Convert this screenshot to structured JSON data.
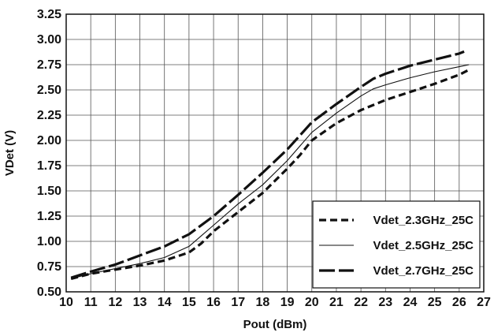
{
  "chart_data": {
    "type": "line",
    "xlabel": "Pout (dBm)",
    "ylabel": "VDet (V)",
    "xlim": [
      10,
      27
    ],
    "ylim": [
      0.5,
      3.25
    ],
    "xticks": [
      10,
      11,
      12,
      13,
      14,
      15,
      16,
      17,
      18,
      19,
      20,
      21,
      22,
      23,
      24,
      25,
      26,
      27
    ],
    "yticks": [
      "0.50",
      "0.75",
      "1.00",
      "1.25",
      "1.50",
      "1.75",
      "2.00",
      "2.25",
      "2.50",
      "2.75",
      "3.00",
      "3.25"
    ],
    "grid": true,
    "legend_position": "bottom-right",
    "series": [
      {
        "name": "Vdet_2.3GHz_25C",
        "style": "short-dash",
        "color": "#111111",
        "points": [
          [
            10.2,
            0.63
          ],
          [
            11,
            0.68
          ],
          [
            12,
            0.72
          ],
          [
            13,
            0.76
          ],
          [
            14,
            0.81
          ],
          [
            15,
            0.89
          ],
          [
            15.5,
            0.98
          ],
          [
            16,
            1.1
          ],
          [
            17,
            1.29
          ],
          [
            18,
            1.48
          ],
          [
            19,
            1.72
          ],
          [
            19.5,
            1.85
          ],
          [
            20,
            2.0
          ],
          [
            21,
            2.17
          ],
          [
            22,
            2.3
          ],
          [
            23,
            2.4
          ],
          [
            24,
            2.48
          ],
          [
            25,
            2.56
          ],
          [
            26,
            2.65
          ],
          [
            26.4,
            2.7
          ]
        ]
      },
      {
        "name": "Vdet_2.5GHz_25C",
        "style": "solid-thin",
        "color": "#111111",
        "points": [
          [
            10.2,
            0.63
          ],
          [
            11,
            0.68
          ],
          [
            12,
            0.73
          ],
          [
            13,
            0.78
          ],
          [
            14,
            0.84
          ],
          [
            15,
            0.95
          ],
          [
            16,
            1.16
          ],
          [
            17,
            1.37
          ],
          [
            18,
            1.56
          ],
          [
            19,
            1.8
          ],
          [
            20,
            2.08
          ],
          [
            21,
            2.27
          ],
          [
            22,
            2.44
          ],
          [
            22.5,
            2.51
          ],
          [
            23,
            2.55
          ],
          [
            24,
            2.62
          ],
          [
            25,
            2.68
          ],
          [
            26,
            2.73
          ],
          [
            26.4,
            2.75
          ]
        ]
      },
      {
        "name": "Vdet_2.7GHz_25C",
        "style": "long-dash",
        "color": "#111111",
        "points": [
          [
            10.2,
            0.64
          ],
          [
            11,
            0.7
          ],
          [
            12,
            0.77
          ],
          [
            13,
            0.86
          ],
          [
            14,
            0.95
          ],
          [
            15,
            1.07
          ],
          [
            16,
            1.25
          ],
          [
            17,
            1.46
          ],
          [
            18,
            1.68
          ],
          [
            19,
            1.91
          ],
          [
            20,
            2.18
          ],
          [
            21,
            2.36
          ],
          [
            22,
            2.53
          ],
          [
            22.5,
            2.61
          ],
          [
            23,
            2.66
          ],
          [
            24,
            2.74
          ],
          [
            25,
            2.8
          ],
          [
            26,
            2.86
          ],
          [
            26.2,
            2.88
          ]
        ]
      }
    ]
  }
}
